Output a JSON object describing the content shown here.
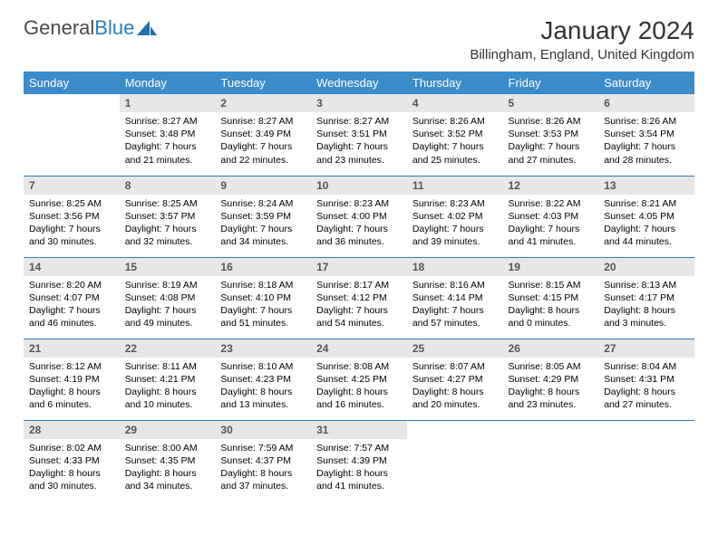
{
  "logo": {
    "part1": "General",
    "part2": "Blue"
  },
  "title": "January 2024",
  "location": "Billingham, England, United Kingdom",
  "colors": {
    "header_bg": "#3b8cc9",
    "header_text": "#ffffff",
    "daynum_bg": "#e7e7e7",
    "daynum_text": "#555555",
    "row_border": "#2a7fbf",
    "logo_gray": "#4a4a4a",
    "logo_blue": "#2a7fbf"
  },
  "weekdays": [
    "Sunday",
    "Monday",
    "Tuesday",
    "Wednesday",
    "Thursday",
    "Friday",
    "Saturday"
  ],
  "weeks": [
    [
      null,
      {
        "n": "1",
        "sunrise": "8:27 AM",
        "sunset": "3:48 PM",
        "dl1": "Daylight: 7 hours",
        "dl2": "and 21 minutes."
      },
      {
        "n": "2",
        "sunrise": "8:27 AM",
        "sunset": "3:49 PM",
        "dl1": "Daylight: 7 hours",
        "dl2": "and 22 minutes."
      },
      {
        "n": "3",
        "sunrise": "8:27 AM",
        "sunset": "3:51 PM",
        "dl1": "Daylight: 7 hours",
        "dl2": "and 23 minutes."
      },
      {
        "n": "4",
        "sunrise": "8:26 AM",
        "sunset": "3:52 PM",
        "dl1": "Daylight: 7 hours",
        "dl2": "and 25 minutes."
      },
      {
        "n": "5",
        "sunrise": "8:26 AM",
        "sunset": "3:53 PM",
        "dl1": "Daylight: 7 hours",
        "dl2": "and 27 minutes."
      },
      {
        "n": "6",
        "sunrise": "8:26 AM",
        "sunset": "3:54 PM",
        "dl1": "Daylight: 7 hours",
        "dl2": "and 28 minutes."
      }
    ],
    [
      {
        "n": "7",
        "sunrise": "8:25 AM",
        "sunset": "3:56 PM",
        "dl1": "Daylight: 7 hours",
        "dl2": "and 30 minutes."
      },
      {
        "n": "8",
        "sunrise": "8:25 AM",
        "sunset": "3:57 PM",
        "dl1": "Daylight: 7 hours",
        "dl2": "and 32 minutes."
      },
      {
        "n": "9",
        "sunrise": "8:24 AM",
        "sunset": "3:59 PM",
        "dl1": "Daylight: 7 hours",
        "dl2": "and 34 minutes."
      },
      {
        "n": "10",
        "sunrise": "8:23 AM",
        "sunset": "4:00 PM",
        "dl1": "Daylight: 7 hours",
        "dl2": "and 36 minutes."
      },
      {
        "n": "11",
        "sunrise": "8:23 AM",
        "sunset": "4:02 PM",
        "dl1": "Daylight: 7 hours",
        "dl2": "and 39 minutes."
      },
      {
        "n": "12",
        "sunrise": "8:22 AM",
        "sunset": "4:03 PM",
        "dl1": "Daylight: 7 hours",
        "dl2": "and 41 minutes."
      },
      {
        "n": "13",
        "sunrise": "8:21 AM",
        "sunset": "4:05 PM",
        "dl1": "Daylight: 7 hours",
        "dl2": "and 44 minutes."
      }
    ],
    [
      {
        "n": "14",
        "sunrise": "8:20 AM",
        "sunset": "4:07 PM",
        "dl1": "Daylight: 7 hours",
        "dl2": "and 46 minutes."
      },
      {
        "n": "15",
        "sunrise": "8:19 AM",
        "sunset": "4:08 PM",
        "dl1": "Daylight: 7 hours",
        "dl2": "and 49 minutes."
      },
      {
        "n": "16",
        "sunrise": "8:18 AM",
        "sunset": "4:10 PM",
        "dl1": "Daylight: 7 hours",
        "dl2": "and 51 minutes."
      },
      {
        "n": "17",
        "sunrise": "8:17 AM",
        "sunset": "4:12 PM",
        "dl1": "Daylight: 7 hours",
        "dl2": "and 54 minutes."
      },
      {
        "n": "18",
        "sunrise": "8:16 AM",
        "sunset": "4:14 PM",
        "dl1": "Daylight: 7 hours",
        "dl2": "and 57 minutes."
      },
      {
        "n": "19",
        "sunrise": "8:15 AM",
        "sunset": "4:15 PM",
        "dl1": "Daylight: 8 hours",
        "dl2": "and 0 minutes."
      },
      {
        "n": "20",
        "sunrise": "8:13 AM",
        "sunset": "4:17 PM",
        "dl1": "Daylight: 8 hours",
        "dl2": "and 3 minutes."
      }
    ],
    [
      {
        "n": "21",
        "sunrise": "8:12 AM",
        "sunset": "4:19 PM",
        "dl1": "Daylight: 8 hours",
        "dl2": "and 6 minutes."
      },
      {
        "n": "22",
        "sunrise": "8:11 AM",
        "sunset": "4:21 PM",
        "dl1": "Daylight: 8 hours",
        "dl2": "and 10 minutes."
      },
      {
        "n": "23",
        "sunrise": "8:10 AM",
        "sunset": "4:23 PM",
        "dl1": "Daylight: 8 hours",
        "dl2": "and 13 minutes."
      },
      {
        "n": "24",
        "sunrise": "8:08 AM",
        "sunset": "4:25 PM",
        "dl1": "Daylight: 8 hours",
        "dl2": "and 16 minutes."
      },
      {
        "n": "25",
        "sunrise": "8:07 AM",
        "sunset": "4:27 PM",
        "dl1": "Daylight: 8 hours",
        "dl2": "and 20 minutes."
      },
      {
        "n": "26",
        "sunrise": "8:05 AM",
        "sunset": "4:29 PM",
        "dl1": "Daylight: 8 hours",
        "dl2": "and 23 minutes."
      },
      {
        "n": "27",
        "sunrise": "8:04 AM",
        "sunset": "4:31 PM",
        "dl1": "Daylight: 8 hours",
        "dl2": "and 27 minutes."
      }
    ],
    [
      {
        "n": "28",
        "sunrise": "8:02 AM",
        "sunset": "4:33 PM",
        "dl1": "Daylight: 8 hours",
        "dl2": "and 30 minutes."
      },
      {
        "n": "29",
        "sunrise": "8:00 AM",
        "sunset": "4:35 PM",
        "dl1": "Daylight: 8 hours",
        "dl2": "and 34 minutes."
      },
      {
        "n": "30",
        "sunrise": "7:59 AM",
        "sunset": "4:37 PM",
        "dl1": "Daylight: 8 hours",
        "dl2": "and 37 minutes."
      },
      {
        "n": "31",
        "sunrise": "7:57 AM",
        "sunset": "4:39 PM",
        "dl1": "Daylight: 8 hours",
        "dl2": "and 41 minutes."
      },
      null,
      null,
      null
    ]
  ]
}
